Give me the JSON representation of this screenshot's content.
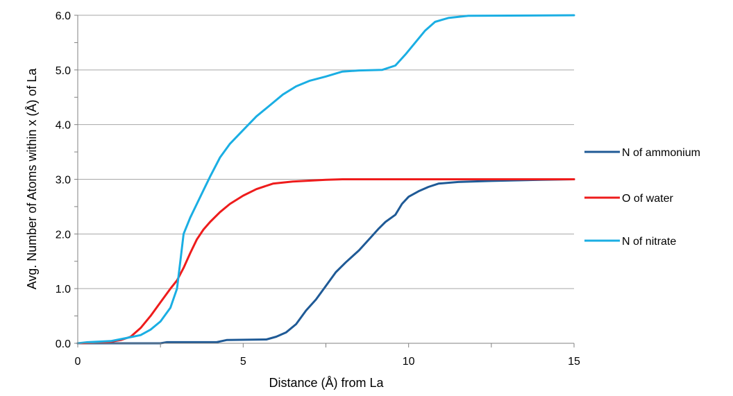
{
  "chart_data": {
    "type": "line",
    "xlabel": "Distance (Å) from La",
    "ylabel": "Avg. Number of Atoms within x (Å) of La",
    "xlim": [
      0,
      15
    ],
    "ylim": [
      0,
      6
    ],
    "x_ticks": [
      0,
      5,
      10,
      15
    ],
    "x_tick_labels": [
      "0",
      "5",
      "10",
      "15"
    ],
    "y_ticks": [
      0,
      1,
      2,
      3,
      4,
      5,
      6
    ],
    "y_tick_labels": [
      "0.0",
      "1.0",
      "2.0",
      "3.0",
      "4.0",
      "5.0",
      "6.0"
    ],
    "grid": "horizontal",
    "legend": "right",
    "series": [
      {
        "name": "N of ammonium",
        "color": "#1f5a96",
        "points": [
          [
            0,
            0
          ],
          [
            2.5,
            0
          ],
          [
            2.7,
            0.02
          ],
          [
            4.2,
            0.02
          ],
          [
            4.5,
            0.06
          ],
          [
            5.7,
            0.07
          ],
          [
            6.0,
            0.12
          ],
          [
            6.3,
            0.2
          ],
          [
            6.6,
            0.35
          ],
          [
            6.9,
            0.6
          ],
          [
            7.2,
            0.8
          ],
          [
            7.5,
            1.05
          ],
          [
            7.8,
            1.3
          ],
          [
            8.1,
            1.48
          ],
          [
            8.5,
            1.7
          ],
          [
            8.8,
            1.9
          ],
          [
            9.1,
            2.1
          ],
          [
            9.3,
            2.22
          ],
          [
            9.6,
            2.35
          ],
          [
            9.8,
            2.55
          ],
          [
            10.0,
            2.68
          ],
          [
            10.3,
            2.78
          ],
          [
            10.6,
            2.86
          ],
          [
            10.9,
            2.92
          ],
          [
            11.5,
            2.95
          ],
          [
            12.5,
            2.97
          ],
          [
            14.0,
            2.99
          ],
          [
            15,
            3.0
          ]
        ]
      },
      {
        "name": "O of water",
        "color": "#ee1c1c",
        "points": [
          [
            0,
            0
          ],
          [
            0.5,
            0.01
          ],
          [
            1.0,
            0.03
          ],
          [
            1.3,
            0.06
          ],
          [
            1.6,
            0.12
          ],
          [
            1.9,
            0.28
          ],
          [
            2.2,
            0.5
          ],
          [
            2.5,
            0.75
          ],
          [
            2.8,
            1.0
          ],
          [
            3.0,
            1.15
          ],
          [
            3.2,
            1.38
          ],
          [
            3.4,
            1.65
          ],
          [
            3.6,
            1.9
          ],
          [
            3.8,
            2.08
          ],
          [
            4.0,
            2.22
          ],
          [
            4.3,
            2.4
          ],
          [
            4.6,
            2.55
          ],
          [
            5.0,
            2.7
          ],
          [
            5.4,
            2.82
          ],
          [
            5.9,
            2.92
          ],
          [
            6.5,
            2.96
          ],
          [
            7.5,
            2.99
          ],
          [
            8.0,
            3.0
          ],
          [
            15,
            3.0
          ]
        ]
      },
      {
        "name": "N of nitrate",
        "color": "#1aaee3",
        "points": [
          [
            0,
            0
          ],
          [
            0.3,
            0.02
          ],
          [
            1.0,
            0.04
          ],
          [
            1.5,
            0.1
          ],
          [
            1.9,
            0.15
          ],
          [
            2.2,
            0.25
          ],
          [
            2.5,
            0.4
          ],
          [
            2.8,
            0.65
          ],
          [
            3.0,
            1.0
          ],
          [
            3.1,
            1.5
          ],
          [
            3.2,
            2.0
          ],
          [
            3.4,
            2.3
          ],
          [
            3.6,
            2.55
          ],
          [
            3.8,
            2.8
          ],
          [
            4.0,
            3.05
          ],
          [
            4.3,
            3.4
          ],
          [
            4.6,
            3.65
          ],
          [
            5.0,
            3.9
          ],
          [
            5.4,
            4.15
          ],
          [
            5.8,
            4.35
          ],
          [
            6.2,
            4.55
          ],
          [
            6.6,
            4.7
          ],
          [
            7.0,
            4.8
          ],
          [
            7.5,
            4.88
          ],
          [
            8.0,
            4.97
          ],
          [
            8.5,
            4.99
          ],
          [
            9.2,
            5.0
          ],
          [
            9.6,
            5.08
          ],
          [
            9.9,
            5.28
          ],
          [
            10.2,
            5.5
          ],
          [
            10.5,
            5.72
          ],
          [
            10.8,
            5.88
          ],
          [
            11.2,
            5.95
          ],
          [
            11.8,
            5.99
          ],
          [
            15,
            6.0
          ]
        ]
      }
    ]
  }
}
